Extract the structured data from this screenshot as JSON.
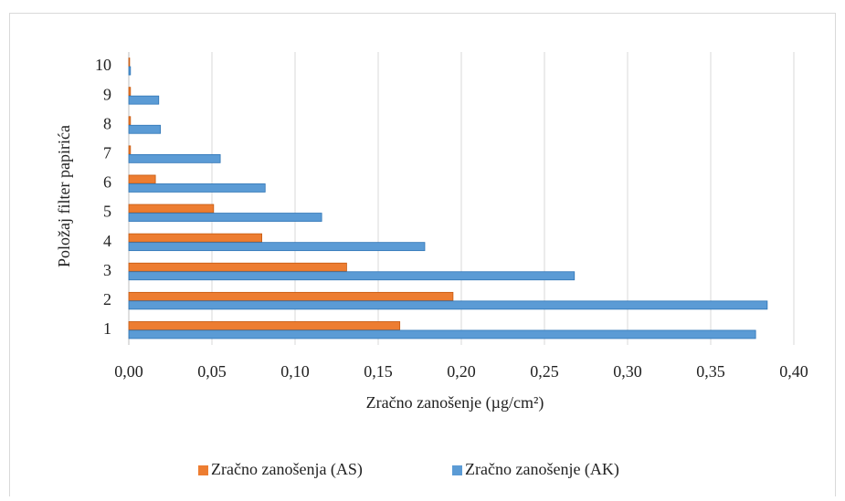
{
  "chart_data": {
    "type": "hbar",
    "x_label": "Zračno zanošenje (µg/cm²)",
    "y_label": "Položaj filter papirića",
    "categories": [
      "1",
      "2",
      "3",
      "4",
      "5",
      "6",
      "7",
      "8",
      "9",
      "10"
    ],
    "series": [
      {
        "name": "Zračno zanošenja (AS)",
        "color": "#ed7d31",
        "values": [
          0.163,
          0.195,
          0.131,
          0.08,
          0.051,
          0.016,
          0.001,
          0.001,
          0.001,
          0.0005
        ]
      },
      {
        "name": "Zračno zanošenje (AK)",
        "color": "#5b9bd5",
        "values": [
          0.377,
          0.384,
          0.268,
          0.178,
          0.116,
          0.082,
          0.055,
          0.019,
          0.018,
          0.001
        ]
      }
    ],
    "xlim": [
      0,
      0.4
    ],
    "xticks": [
      {
        "value": 0,
        "label": "0,00"
      },
      {
        "value": 0.05,
        "label": "0,05"
      },
      {
        "value": 0.1,
        "label": "0,10"
      },
      {
        "value": 0.15,
        "label": "0,15"
      },
      {
        "value": 0.2,
        "label": "0,20"
      },
      {
        "value": 0.25,
        "label": "0,25"
      },
      {
        "value": 0.3,
        "label": "0,30"
      },
      {
        "value": 0.35,
        "label": "0,35"
      },
      {
        "value": 0.4,
        "label": "0,40"
      }
    ],
    "grid": true,
    "legend": "bottom"
  }
}
